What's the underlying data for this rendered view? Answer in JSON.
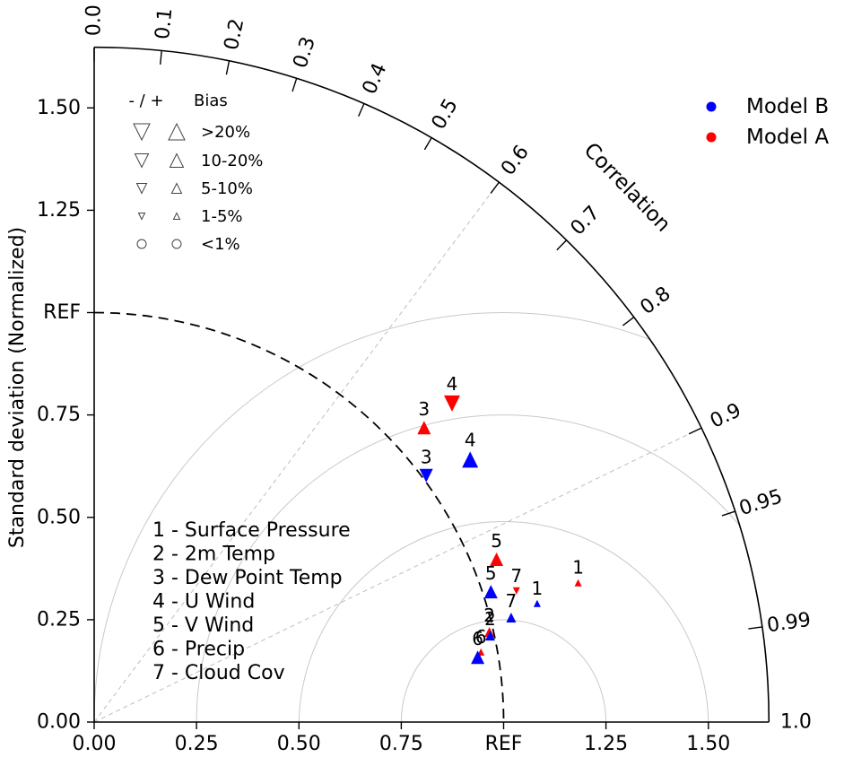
{
  "chart_data": {
    "type": "scatter",
    "subtype": "taylor-diagram",
    "ylabel": "Standard deviation (Normalized)",
    "correlation_label": "Correlation",
    "axis_max": 1.648,
    "ref_std": 1.0,
    "std_ticks": [
      {
        "v": 0.0,
        "label": "0.00"
      },
      {
        "v": 0.25,
        "label": "0.25"
      },
      {
        "v": 0.5,
        "label": "0.50"
      },
      {
        "v": 0.75,
        "label": "0.75"
      },
      {
        "v": 1.0,
        "label": "REF"
      },
      {
        "v": 1.25,
        "label": "1.25"
      },
      {
        "v": 1.5,
        "label": "1.50"
      }
    ],
    "corr_ticks": [
      0.0,
      0.1,
      0.2,
      0.3,
      0.4,
      0.5,
      0.6,
      0.7,
      0.8,
      0.9,
      0.95,
      0.99
    ],
    "corr_tick_labels": [
      {
        "v": 0.0,
        "label": "0.0"
      },
      {
        "v": 0.1,
        "label": "0.1"
      },
      {
        "v": 0.2,
        "label": "0.2"
      },
      {
        "v": 0.3,
        "label": "0.3"
      },
      {
        "v": 0.4,
        "label": "0.4"
      },
      {
        "v": 0.5,
        "label": "0.5"
      },
      {
        "v": 0.6,
        "label": "0.6"
      },
      {
        "v": 0.7,
        "label": "0.7"
      },
      {
        "v": 0.8,
        "label": "0.8"
      },
      {
        "v": 0.9,
        "label": "0.9"
      },
      {
        "v": 0.95,
        "label": "0.95"
      },
      {
        "v": 0.99,
        "label": "0.99"
      },
      {
        "v": 1.0,
        "label": "1.0"
      }
    ],
    "corr_rays": [
      0.6,
      0.9
    ],
    "rms_arc_radii": [
      0.25,
      0.5,
      0.75,
      1.0
    ],
    "series": [
      {
        "name": "Model A",
        "color": "#ff0000",
        "points": [
          {
            "var": 1,
            "std": 1.23,
            "corr": 0.961,
            "bias_sign": "+",
            "bias_class": "1-5%"
          },
          {
            "var": 2,
            "std": 0.99,
            "corr": 0.975,
            "bias_sign": "+",
            "bias_class": "5-10%"
          },
          {
            "var": 3,
            "std": 1.08,
            "corr": 0.746,
            "bias_sign": "+",
            "bias_class": "10-20%"
          },
          {
            "var": 4,
            "std": 1.17,
            "corr": 0.747,
            "bias_sign": "-",
            "bias_class": ">20%"
          },
          {
            "var": 5,
            "std": 1.06,
            "corr": 0.927,
            "bias_sign": "+",
            "bias_class": "10-20%"
          },
          {
            "var": 6,
            "std": 0.96,
            "corr": 0.984,
            "bias_sign": "+",
            "bias_class": "1-5%"
          },
          {
            "var": 7,
            "std": 1.08,
            "corr": 0.955,
            "bias_sign": "-",
            "bias_class": "1-5%"
          }
        ]
      },
      {
        "name": "Model B",
        "color": "#0000ff",
        "points": [
          {
            "var": 1,
            "std": 1.12,
            "corr": 0.966,
            "bias_sign": "+",
            "bias_class": "1-5%"
          },
          {
            "var": 2,
            "std": 0.99,
            "corr": 0.977,
            "bias_sign": "+",
            "bias_class": "5-10%"
          },
          {
            "var": 3,
            "std": 1.01,
            "corr": 0.803,
            "bias_sign": "-",
            "bias_class": "10-20%"
          },
          {
            "var": 4,
            "std": 1.12,
            "corr": 0.82,
            "bias_sign": "+",
            "bias_class": ">20%"
          },
          {
            "var": 5,
            "std": 1.02,
            "corr": 0.95,
            "bias_sign": "+",
            "bias_class": "10-20%"
          },
          {
            "var": 6,
            "std": 0.95,
            "corr": 0.986,
            "bias_sign": "+",
            "bias_class": "10-20%"
          },
          {
            "var": 7,
            "std": 1.05,
            "corr": 0.97,
            "bias_sign": "+",
            "bias_class": "5-10%"
          }
        ]
      }
    ]
  },
  "model_legend": {
    "items": [
      {
        "label": "Model B",
        "color": "#0000ff"
      },
      {
        "label": "Model A",
        "color": "#ff0000"
      }
    ]
  },
  "bias_legend": {
    "signs_header": "- / +",
    "title": "Bias",
    "rows": [
      {
        "label": ">20%",
        "shape": "triangle",
        "size_rank": 0
      },
      {
        "label": "10-20%",
        "shape": "triangle",
        "size_rank": 1
      },
      {
        "label": "5-10%",
        "shape": "triangle",
        "size_rank": 2
      },
      {
        "label": "1-5%",
        "shape": "triangle",
        "size_rank": 3
      },
      {
        "label": "<1%",
        "shape": "circle",
        "size_rank": 4
      }
    ]
  },
  "variable_key": {
    "items": [
      "1 - Surface Pressure",
      "2 - 2m Temp",
      "3 - Dew Point Temp",
      "4 - U Wind",
      "5 - V Wind",
      "6 - Precip",
      "7 - Cloud Cov"
    ]
  }
}
